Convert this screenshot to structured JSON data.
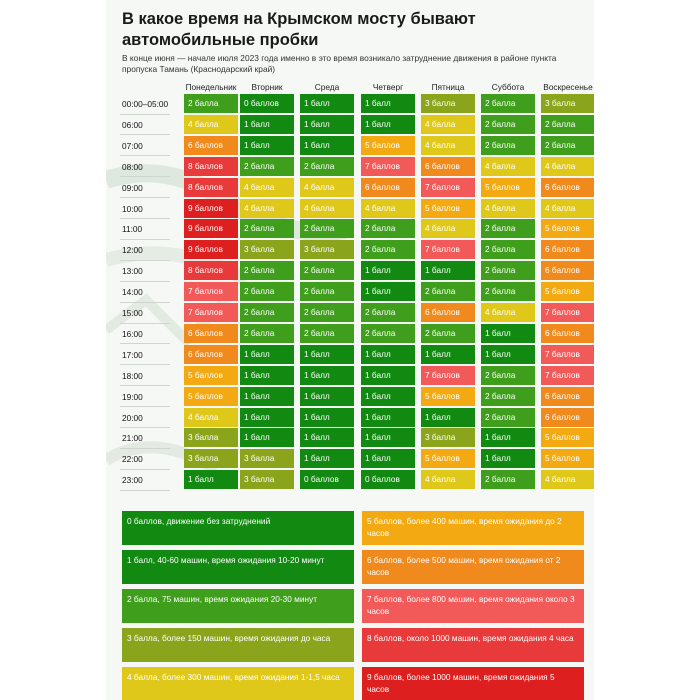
{
  "title": "В какое время на Крымском мосту бывают автомобильные пробки",
  "subtitle": "В конце июня — начале июля 2023 года именно в это время возникало затруднение движения в районе пункта пропуска Тамань (Краснодарский край)",
  "colors": {
    "0": "#128a12",
    "1": "#128a12",
    "2": "#3f9e1c",
    "3": "#8aa51c",
    "4": "#dfc81a",
    "5": "#f2a912",
    "6": "#f08a1c",
    "7": "#f25a5a",
    "8": "#e83a3a",
    "9": "#de1f1f"
  },
  "text_colors": {
    "0": "#ffffff",
    "1": "#ffffff",
    "2": "#ffffff",
    "3": "#ffffff",
    "4": "#ffffff",
    "5": "#ffffff",
    "6": "#ffffff",
    "7": "#ffffff",
    "8": "#ffffff",
    "9": "#ffffff"
  },
  "chart_data": {
    "type": "heatmap",
    "title": "В какое время на Крымском мосту бывают автомобильные пробки",
    "columns": [
      "Понедельник",
      "Вторник",
      "Среда",
      "Четверг",
      "Пятница",
      "Суббота",
      "Воскресенье"
    ],
    "rows": [
      "00:00–05:00",
      "06:00",
      "07:00",
      "08:00",
      "09:00",
      "10:00",
      "11:00",
      "12:00",
      "13:00",
      "14:00",
      "15:00",
      "16:00",
      "17:00",
      "18:00",
      "19:00",
      "20:00",
      "21:00",
      "22:00",
      "23:00"
    ],
    "values": [
      [
        2,
        0,
        1,
        1,
        3,
        2,
        3
      ],
      [
        4,
        1,
        1,
        1,
        4,
        2,
        2
      ],
      [
        6,
        1,
        1,
        5,
        4,
        2,
        2
      ],
      [
        8,
        2,
        2,
        7,
        6,
        4,
        4
      ],
      [
        8,
        4,
        4,
        6,
        7,
        5,
        6
      ],
      [
        9,
        4,
        4,
        4,
        5,
        4,
        4
      ],
      [
        9,
        2,
        2,
        2,
        4,
        2,
        5
      ],
      [
        9,
        3,
        3,
        2,
        7,
        2,
        6
      ],
      [
        8,
        2,
        2,
        1,
        1,
        2,
        6
      ],
      [
        7,
        2,
        2,
        1,
        2,
        2,
        5
      ],
      [
        7,
        2,
        2,
        2,
        6,
        4,
        7
      ],
      [
        6,
        2,
        2,
        2,
        2,
        1,
        6
      ],
      [
        6,
        1,
        1,
        1,
        1,
        1,
        7
      ],
      [
        5,
        1,
        1,
        1,
        7,
        2,
        7
      ],
      [
        5,
        1,
        1,
        1,
        5,
        2,
        6
      ],
      [
        4,
        1,
        1,
        1,
        1,
        2,
        6
      ],
      [
        3,
        1,
        1,
        1,
        3,
        1,
        5
      ],
      [
        3,
        3,
        1,
        1,
        5,
        1,
        5
      ],
      [
        1,
        3,
        0,
        0,
        4,
        2,
        4
      ]
    ],
    "labels": [
      [
        "2 балла",
        "0 баллов",
        "1 балл",
        "1 балл",
        "3 балла",
        "2 балла",
        "3 балла"
      ],
      [
        "4 балла",
        "1 балл",
        "1 балл",
        "1 балл",
        "4 балла",
        "2 балла",
        "2 балла"
      ],
      [
        "6 баллов",
        "1 балл",
        "1 балл",
        "5 баллов",
        "4 балла",
        "2 балла",
        "2 балла"
      ],
      [
        "8 баллов",
        "2 балла",
        "2 балла",
        "7 баллов",
        "6 баллов",
        "4 балла",
        "4 балла"
      ],
      [
        "8 баллов",
        "4 балла",
        "4 балла",
        "6 баллов",
        "7 баллов",
        "5 баллов",
        "6 баллов"
      ],
      [
        "9 баллов",
        "4 балла",
        "4 балла",
        "4 балла",
        "5 баллов",
        "4 балла",
        "4 балла"
      ],
      [
        "9 баллов",
        "2 балла",
        "2 балла",
        "2 балла",
        "4 балла",
        "2 балла",
        "5 баллов"
      ],
      [
        "9 баллов",
        "3 балла",
        "3 балла",
        "2 балла",
        "7 баллов",
        "2 балла",
        "6 баллов"
      ],
      [
        "8 баллов",
        "2 балла",
        "2 балла",
        "1 балл",
        "1 балл",
        "2 балла",
        "6 баллов"
      ],
      [
        "7 баллов",
        "2 балла",
        "2 балла",
        "1 балл",
        "2 балла",
        "2 балла",
        "5 баллов"
      ],
      [
        "7 баллов",
        "2 балла",
        "2 балла",
        "2 балла",
        "6 баллов",
        "4 балла",
        "7 баллов"
      ],
      [
        "6 баллов",
        "2 балла",
        "2 балла",
        "2 балла",
        "2 балла",
        "1 балл",
        "6 баллов"
      ],
      [
        "6 баллов",
        "1 балл",
        "1 балл",
        "1 балл",
        "1 балл",
        "1 балл",
        "7 баллов"
      ],
      [
        "5 баллов",
        "1 балл",
        "1 балл",
        "1 балл",
        "7 баллов",
        "2 балла",
        "7 баллов"
      ],
      [
        "5 баллов",
        "1 балл",
        "1 балл",
        "1 балл",
        "5 баллов",
        "2 балла",
        "6 баллов"
      ],
      [
        "4 балла",
        "1 балл",
        "1 балл",
        "1 балл",
        "1 балл",
        "2 балла",
        "6 баллов"
      ],
      [
        "3 балла",
        "1 балл",
        "1 балл",
        "1 балл",
        "3 балла",
        "1 балл",
        "5 баллов"
      ],
      [
        "3 балла",
        "3 балла",
        "1 балл",
        "1 балл",
        "5 баллов",
        "1 балл",
        "5 баллов"
      ],
      [
        "1 балл",
        "3 балла",
        "0 баллов",
        "0 баллов",
        "4 балла",
        "2 балла",
        "4 балла"
      ]
    ]
  },
  "legend": [
    {
      "score": 0,
      "text": "0 баллов, движение без затруднений"
    },
    {
      "score": 5,
      "text": "5 баллов, более 400 машин, время ожидания до 2 часов"
    },
    {
      "score": 1,
      "text": "1 балл, 40-60 машин, время ожидания 10-20 минут"
    },
    {
      "score": 6,
      "text": "6 баллов, более 500 машин, время ожидания от 2 часов"
    },
    {
      "score": 2,
      "text": "2 балла, 75 машин, время ожидания 20-30 минут"
    },
    {
      "score": 7,
      "text": "7 баллов, более 800 машин, время ожидания около 3 часов"
    },
    {
      "score": 3,
      "text": "3 балла, более 150 машин, время ожидания до часа"
    },
    {
      "score": 8,
      "text": "8 баллов, около 1000 машин, время ожидания 4 часа"
    },
    {
      "score": 4,
      "text": "4 балла, более 300 машин, время ожидания 1-1,5 часа"
    },
    {
      "score": 9,
      "text": "9 баллов, более 1000 машин, время ожидания 5 часов"
    }
  ]
}
